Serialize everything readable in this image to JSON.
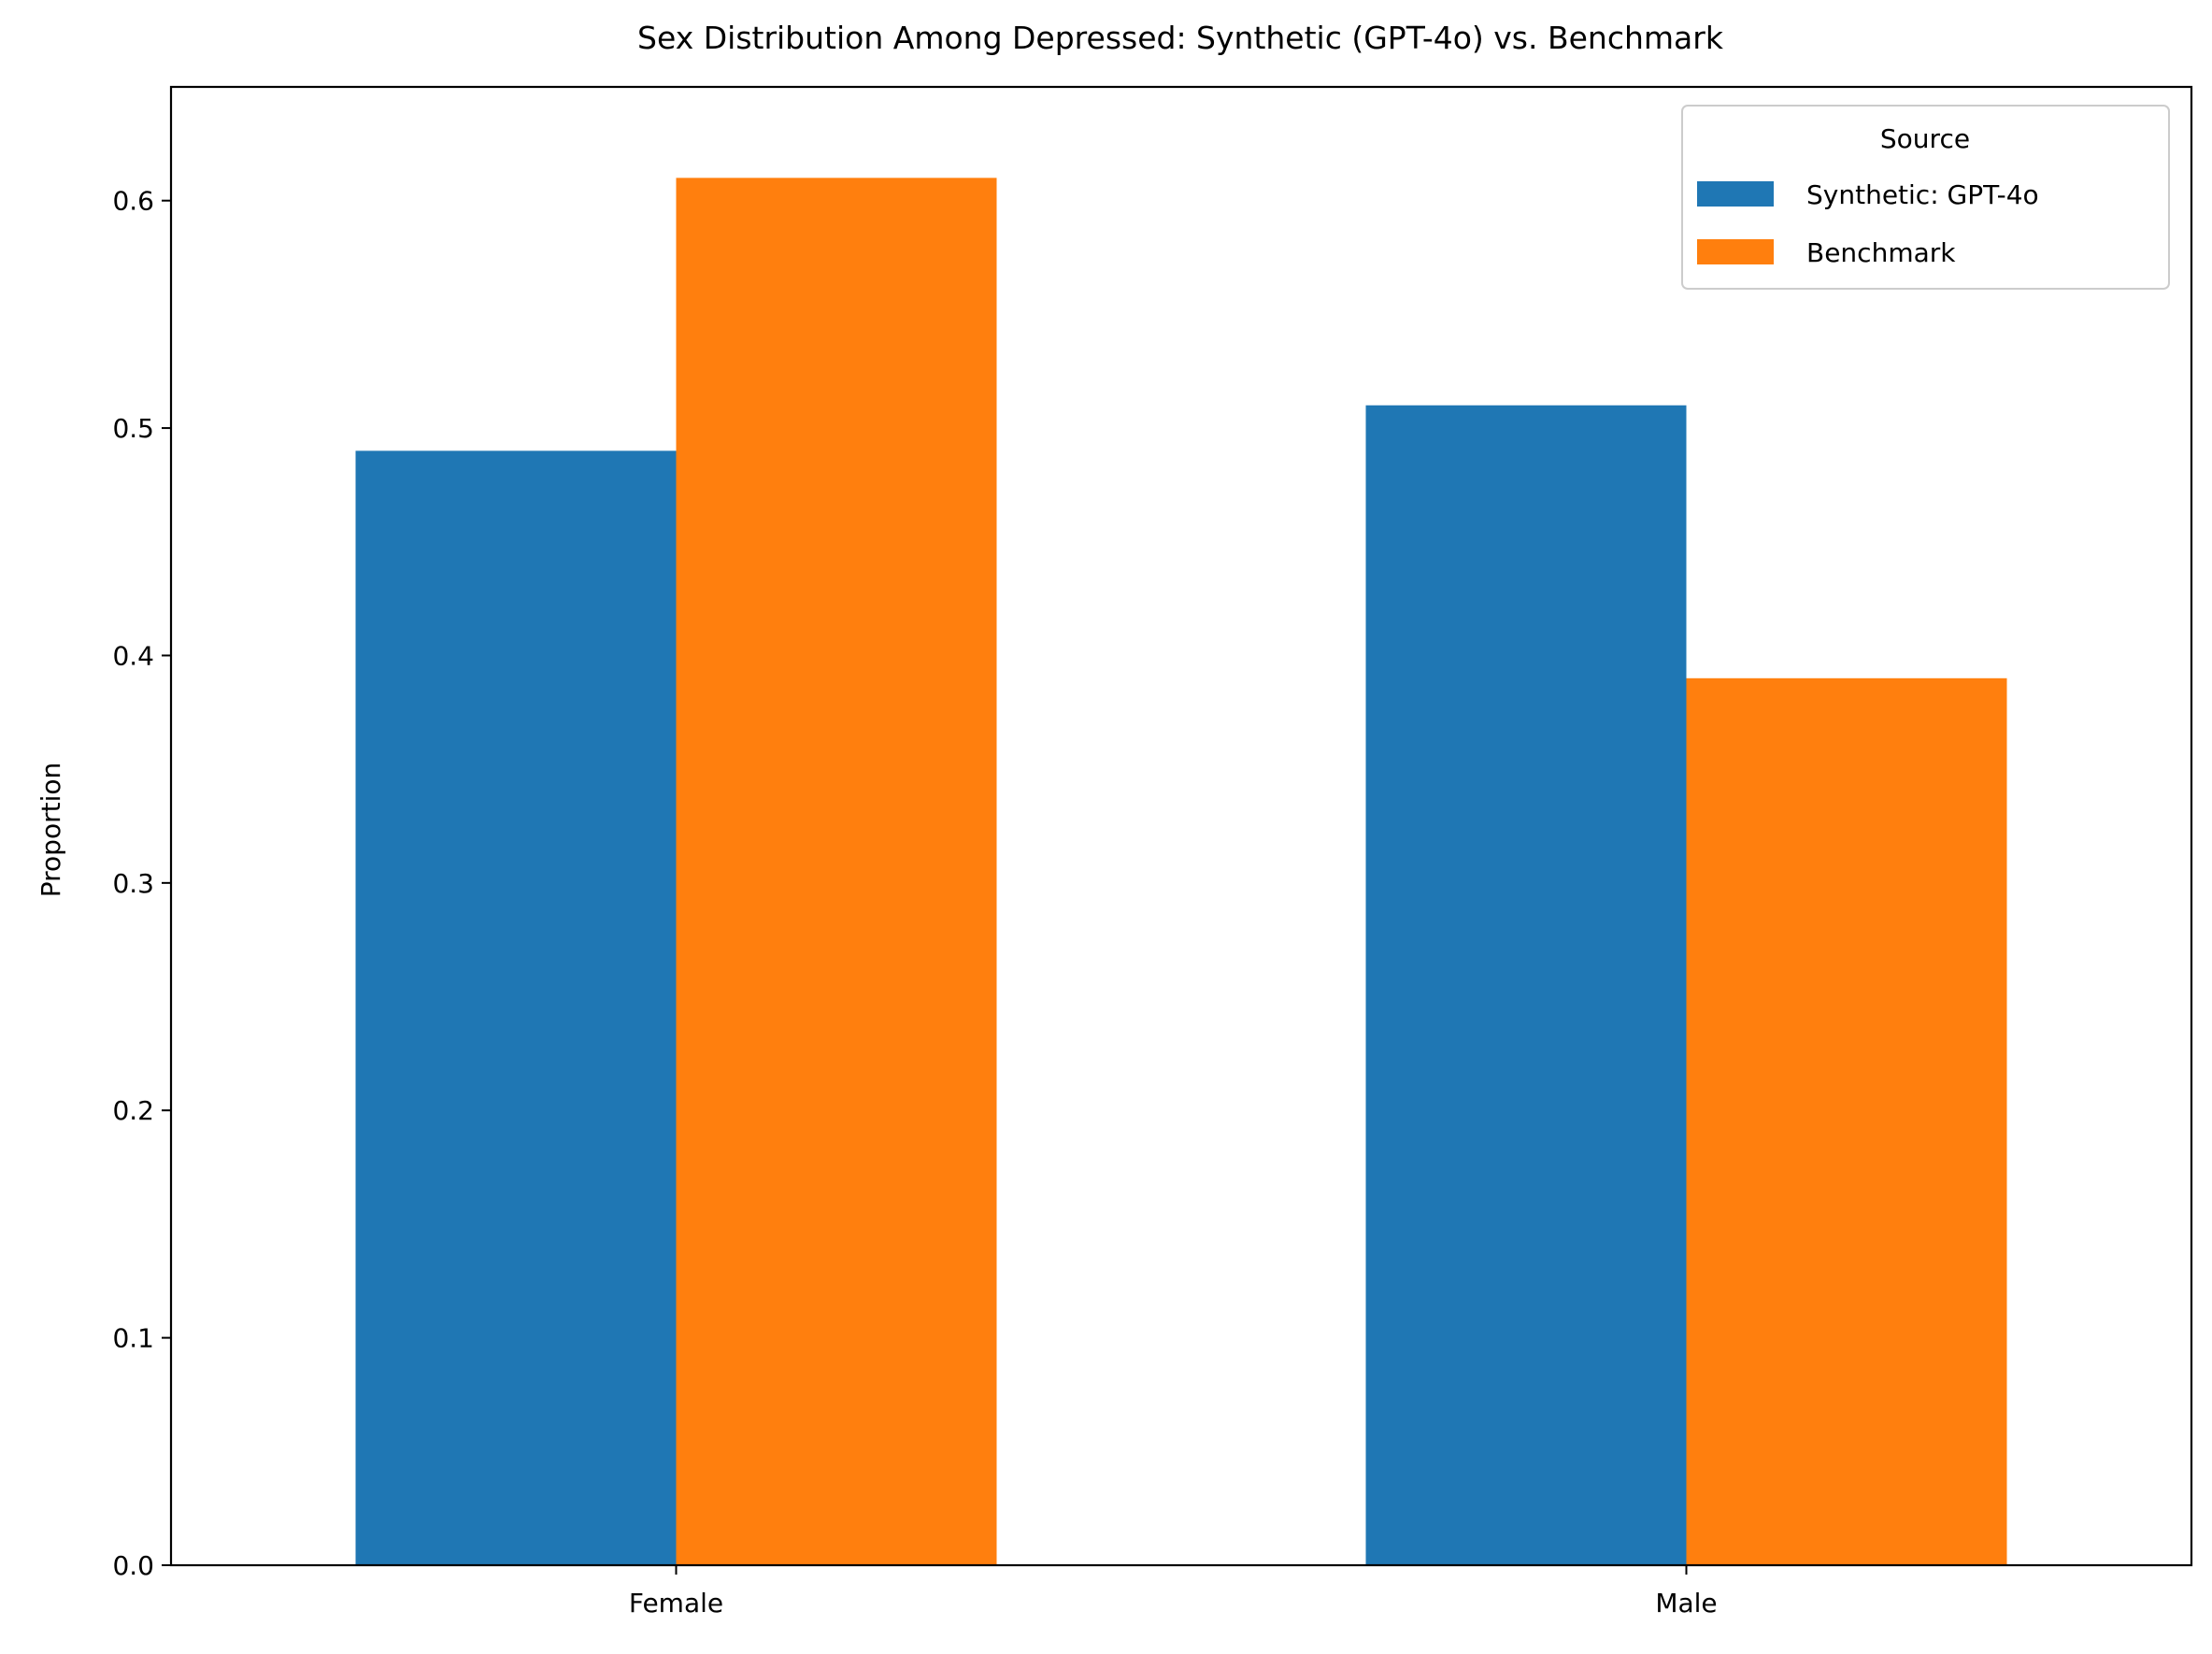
{
  "chart_data": {
    "type": "bar",
    "title": "Sex Distribution Among Depressed: Synthetic (GPT-4o) vs. Benchmark",
    "xlabel": "",
    "ylabel": "Proportion",
    "categories": [
      "Female",
      "Male"
    ],
    "series": [
      {
        "name": "Synthetic: GPT-4o",
        "color": "#1f77b4",
        "values": [
          0.49,
          0.51
        ]
      },
      {
        "name": "Benchmark",
        "color": "#ff7f0e",
        "values": [
          0.61,
          0.39
        ]
      }
    ],
    "ylim": [
      0,
      0.65
    ],
    "yticks": [
      "0.0",
      "0.1",
      "0.2",
      "0.3",
      "0.4",
      "0.5",
      "0.6"
    ],
    "grid": false,
    "legend": {
      "title": "Source",
      "position": "top-right"
    }
  }
}
